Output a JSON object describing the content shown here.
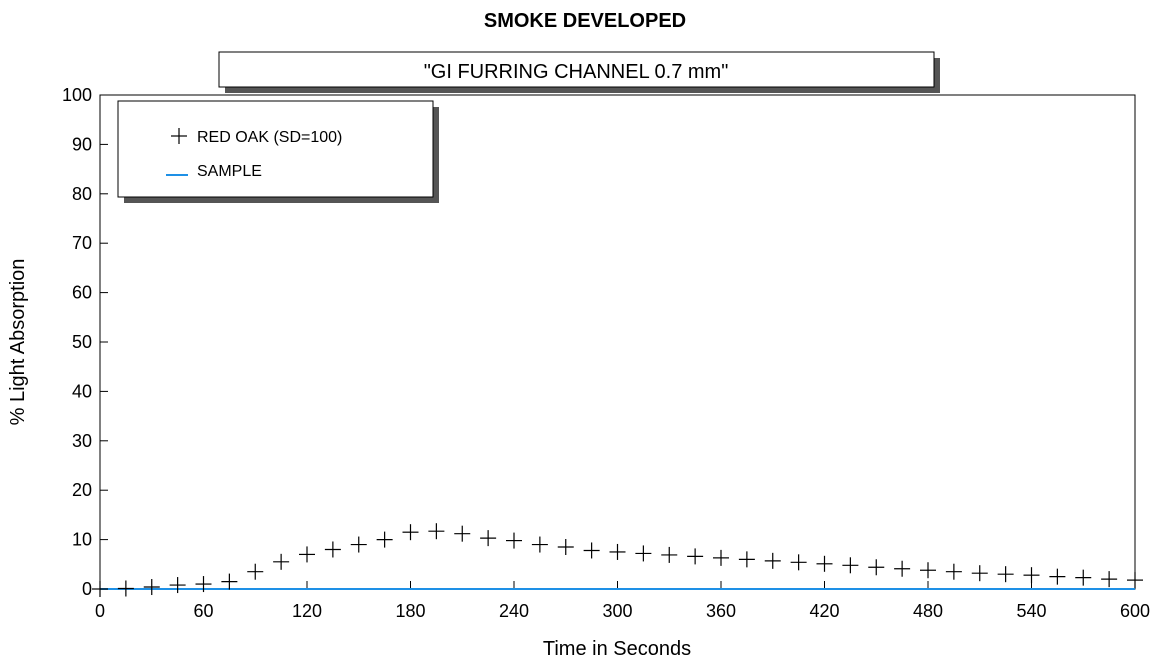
{
  "chart_data": {
    "type": "scatter",
    "title": "SMOKE DEVELOPED",
    "subtitle": "\"GI FURRING CHANNEL 0.7 mm\"",
    "xlabel": "Time in Seconds",
    "ylabel": "% Light Absorption",
    "xlim": [
      0,
      600
    ],
    "ylim": [
      0,
      100
    ],
    "xticks": [
      "0",
      "60",
      "120",
      "180",
      "240",
      "300",
      "360",
      "420",
      "480",
      "540",
      "600"
    ],
    "yticks": [
      "0",
      "10",
      "20",
      "30",
      "40",
      "50",
      "60",
      "70",
      "80",
      "90",
      "100"
    ],
    "grid": false,
    "legend_position": "top-left",
    "series": [
      {
        "name": "RED OAK (SD=100)",
        "marker": "plus",
        "color": "#000000",
        "x": [
          0,
          15,
          30,
          45,
          60,
          75,
          90,
          105,
          120,
          135,
          150,
          165,
          180,
          195,
          210,
          225,
          240,
          255,
          270,
          285,
          300,
          315,
          330,
          345,
          360,
          375,
          390,
          405,
          420,
          435,
          450,
          465,
          480,
          495,
          510,
          525,
          540,
          555,
          570,
          585,
          600
        ],
        "y": [
          0,
          0.1,
          0.4,
          0.8,
          1.0,
          1.5,
          3.5,
          5.5,
          7.0,
          8.0,
          9.0,
          10.0,
          11.5,
          11.7,
          11.2,
          10.3,
          9.8,
          9.0,
          8.5,
          7.8,
          7.5,
          7.2,
          6.9,
          6.6,
          6.3,
          6.0,
          5.7,
          5.4,
          5.1,
          4.8,
          4.4,
          4.1,
          3.8,
          3.5,
          3.2,
          3.0,
          2.8,
          2.5,
          2.3,
          2.0,
          1.8
        ]
      },
      {
        "name": "SAMPLE",
        "marker": "line",
        "color": "#1e90e6",
        "x": [
          0,
          600
        ],
        "y": [
          0,
          0
        ]
      }
    ]
  }
}
